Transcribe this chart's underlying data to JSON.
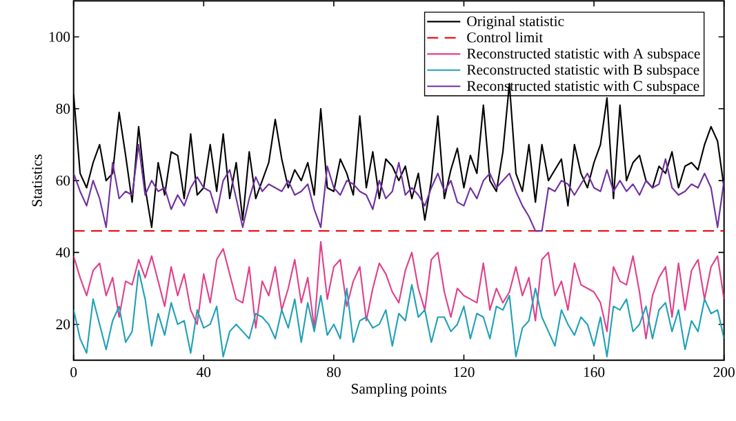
{
  "chart_data": {
    "type": "line",
    "xlabel": "Sampling points",
    "ylabel": "Statistics",
    "xlim": [
      0,
      200
    ],
    "ylim": [
      10,
      110
    ],
    "xticks": [
      0,
      40,
      80,
      120,
      160,
      200
    ],
    "yticks": [
      20,
      40,
      60,
      80,
      100
    ],
    "legend": "top right",
    "grid": false,
    "line_style": "solid",
    "x": [
      0,
      2,
      4,
      6,
      8,
      10,
      12,
      14,
      16,
      18,
      20,
      22,
      24,
      26,
      28,
      30,
      32,
      34,
      36,
      38,
      40,
      42,
      44,
      46,
      48,
      50,
      52,
      54,
      56,
      58,
      60,
      62,
      64,
      66,
      68,
      70,
      72,
      74,
      76,
      78,
      80,
      82,
      84,
      86,
      88,
      90,
      92,
      94,
      96,
      98,
      100,
      102,
      104,
      106,
      108,
      110,
      112,
      114,
      116,
      118,
      120,
      122,
      124,
      126,
      128,
      130,
      132,
      134,
      136,
      138,
      140,
      142,
      144,
      146,
      148,
      150,
      152,
      154,
      156,
      158,
      160,
      162,
      164,
      166,
      168,
      170,
      172,
      174,
      176,
      178,
      180,
      182,
      184,
      186,
      188,
      190,
      192,
      194,
      196,
      198,
      200
    ],
    "ref_lines": [
      {
        "axis": "y",
        "value": 46,
        "label": "Control limit",
        "color": "#e8141c",
        "line_style": "dashed"
      }
    ],
    "series": [
      {
        "name": "Original statistic",
        "color": "#000000",
        "values": [
          84,
          62,
          58,
          65,
          70,
          60,
          62,
          79,
          67,
          54,
          75,
          58,
          47,
          65,
          56,
          68,
          67,
          55,
          73,
          56,
          58,
          70,
          57,
          73,
          55,
          65,
          49,
          68,
          55,
          60,
          65,
          77,
          66,
          58,
          63,
          60,
          65,
          56,
          80,
          58,
          57,
          66,
          62,
          56,
          78,
          58,
          68,
          55,
          66,
          64,
          60,
          64,
          55,
          62,
          49,
          60,
          78,
          55,
          63,
          69,
          58,
          67,
          62,
          81,
          60,
          57,
          68,
          87,
          62,
          57,
          70,
          54,
          70,
          60,
          63,
          66,
          53,
          70,
          62,
          58,
          65,
          70,
          83,
          55,
          81,
          60,
          65,
          67,
          60,
          58,
          64,
          62,
          68,
          58,
          64,
          65,
          63,
          70,
          75,
          71,
          58
        ]
      },
      {
        "name": "Reconstructed statistic with A subspace",
        "color": "#e0408a",
        "values": [
          39,
          33,
          28,
          35,
          37,
          28,
          33,
          22,
          32,
          31,
          38,
          33,
          39,
          32,
          25,
          36,
          28,
          34,
          24,
          20,
          34,
          26,
          38,
          41,
          34,
          27,
          26,
          36,
          19,
          32,
          28,
          36,
          24,
          30,
          38,
          26,
          33,
          19,
          43,
          27,
          36,
          38,
          25,
          32,
          36,
          21,
          30,
          37,
          34,
          29,
          26,
          35,
          40,
          30,
          24,
          38,
          40,
          29,
          22,
          30,
          28,
          27,
          26,
          37,
          24,
          30,
          26,
          29,
          36,
          28,
          33,
          21,
          38,
          40,
          28,
          32,
          24,
          37,
          31,
          30,
          29,
          26,
          18,
          36,
          32,
          31,
          39,
          29,
          16,
          28,
          33,
          36,
          22,
          37,
          24,
          35,
          38,
          27,
          36,
          39,
          27
        ]
      },
      {
        "name": "Reconstructed statistic with B subspace",
        "color": "#20a0b8",
        "values": [
          24,
          16,
          12,
          27,
          20,
          13,
          21,
          25,
          15,
          18,
          35,
          27,
          14,
          23,
          17,
          26,
          20,
          21,
          12,
          24,
          19,
          20,
          25,
          11,
          18,
          20,
          18,
          16,
          23,
          22,
          20,
          16,
          24,
          19,
          27,
          15,
          26,
          18,
          28,
          17,
          20,
          16,
          30,
          15,
          21,
          22,
          19,
          20,
          24,
          14,
          23,
          21,
          31,
          22,
          24,
          15,
          22,
          22,
          18,
          20,
          25,
          16,
          23,
          22,
          16,
          25,
          24,
          28,
          11,
          19,
          21,
          30,
          22,
          18,
          14,
          24,
          20,
          17,
          22,
          20,
          14,
          22,
          11,
          25,
          24,
          27,
          18,
          20,
          25,
          16,
          24,
          26,
          18,
          24,
          13,
          21,
          18,
          27,
          23,
          24,
          16
        ]
      },
      {
        "name": "Reconstructed statistic with C subspace",
        "color": "#7030a0",
        "values": [
          62,
          57,
          53,
          60,
          55,
          47,
          65,
          55,
          57,
          56,
          70,
          56,
          60,
          57,
          58,
          52,
          56,
          53,
          58,
          61,
          58,
          57,
          51,
          60,
          63,
          55,
          47,
          55,
          61,
          57,
          59,
          58,
          57,
          60,
          56,
          57,
          59,
          52,
          47,
          64,
          58,
          56,
          60,
          59,
          57,
          56,
          52,
          60,
          55,
          57,
          65,
          56,
          58,
          56,
          53,
          58,
          62,
          57,
          60,
          54,
          53,
          58,
          55,
          60,
          62,
          58,
          60,
          62,
          57,
          53,
          50,
          46,
          46,
          58,
          57,
          60,
          59,
          56,
          59,
          62,
          58,
          57,
          63,
          57,
          60,
          57,
          59,
          56,
          60,
          58,
          59,
          66,
          58,
          56,
          57,
          59,
          58,
          62,
          58,
          47,
          60
        ]
      }
    ]
  }
}
